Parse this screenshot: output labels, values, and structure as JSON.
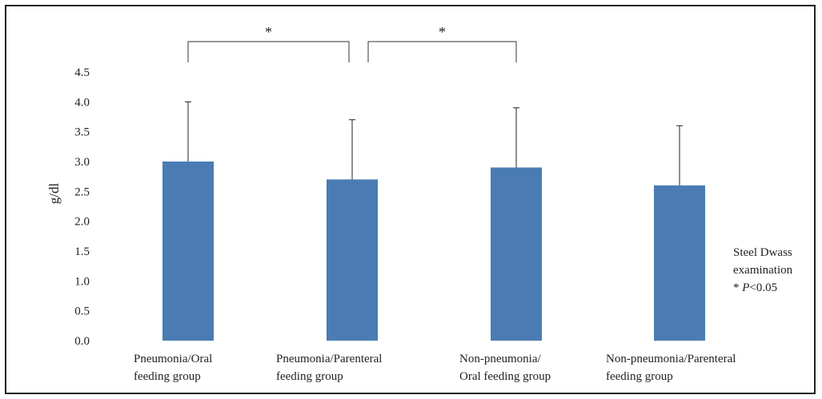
{
  "chart_data": {
    "type": "bar",
    "title": "",
    "xlabel": "",
    "ylabel": "g/dl",
    "ylim": [
      0,
      4.5
    ],
    "yticks": [
      "0.0",
      "0.5",
      "1.0",
      "1.5",
      "2.0",
      "2.5",
      "3.0",
      "3.5",
      "4.0",
      "4.5"
    ],
    "categories": [
      [
        "Pneumonia/Oral",
        "feeding group"
      ],
      [
        "Pneumonia/Parenteral",
        "feeding group"
      ],
      [
        "Non-pneumonia/",
        "Oral feeding group"
      ],
      [
        "Non-pneumonia/Parenteral",
        "feeding group"
      ]
    ],
    "values": [
      3.0,
      2.7,
      2.9,
      2.6
    ],
    "error_upper": [
      4.0,
      3.7,
      3.9,
      3.6
    ],
    "bar_color": "#4a7cb3",
    "grid": false,
    "significance": [
      {
        "from": 0,
        "to": 1,
        "label": "*"
      },
      {
        "from": 1,
        "to": 2,
        "label": "*"
      }
    ],
    "note": {
      "lines": [
        "Steel Dwass",
        "examination"
      ],
      "star": "* ",
      "p": "P",
      "rest": "<0.05"
    }
  }
}
